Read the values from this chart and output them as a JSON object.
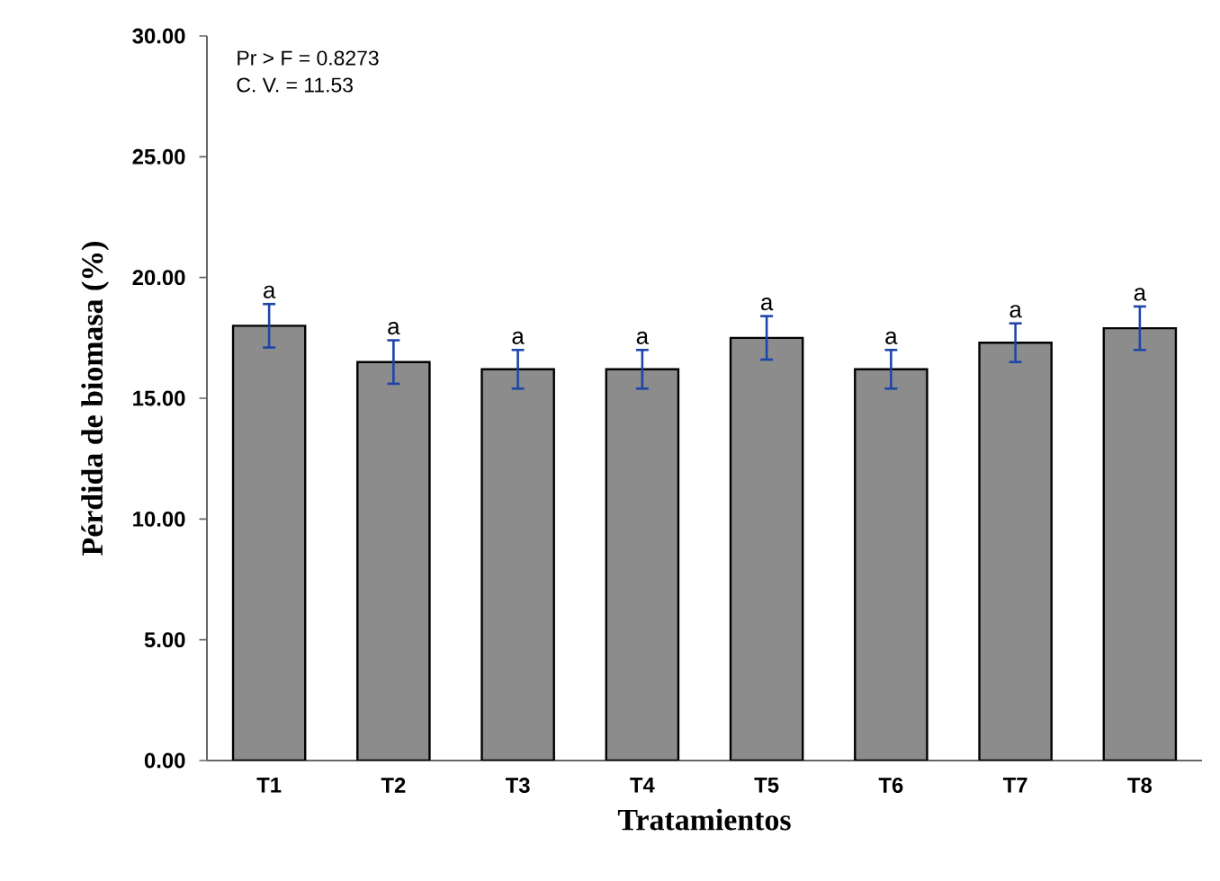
{
  "chart_data": {
    "type": "bar",
    "xlabel": "Tratamientos",
    "ylabel": "Pérdida de biomasa (%)",
    "categories": [
      "T1",
      "T2",
      "T3",
      "T4",
      "T5",
      "T6",
      "T7",
      "T8"
    ],
    "values": [
      18.0,
      16.5,
      16.2,
      16.2,
      17.5,
      16.2,
      17.3,
      17.9
    ],
    "errors": [
      0.9,
      0.9,
      0.8,
      0.8,
      0.9,
      0.8,
      0.8,
      0.9
    ],
    "color": "#8c8c8c",
    "ylim": [
      0,
      30
    ],
    "yticks": [
      {
        "value": 0,
        "label": "0.00"
      },
      {
        "value": 5,
        "label": "5.00"
      },
      {
        "value": 10,
        "label": "10.00"
      },
      {
        "value": 15,
        "label": "15.00"
      },
      {
        "value": 20,
        "label": "20.00"
      },
      {
        "value": 25,
        "label": "25.00"
      },
      {
        "value": 30,
        "label": "30.00"
      }
    ],
    "annotations": [
      "Pr > F = 0.8273",
      "C. V. = 11.53",
      {
        "text": "a",
        "x": "T1",
        "y": 18.9
      },
      {
        "text": "a",
        "x": "T2",
        "y": 17.4
      },
      {
        "text": "a",
        "x": "T3",
        "y": 17.0
      },
      {
        "text": "a",
        "x": "T4",
        "y": 17.0
      },
      {
        "text": "a",
        "x": "T5",
        "y": 18.4
      },
      {
        "text": "a",
        "x": "T6",
        "y": 17.0
      },
      {
        "text": "a",
        "x": "T7",
        "y": 18.1
      },
      {
        "text": "a",
        "x": "T8",
        "y": 18.8
      }
    ],
    "grid": false
  }
}
